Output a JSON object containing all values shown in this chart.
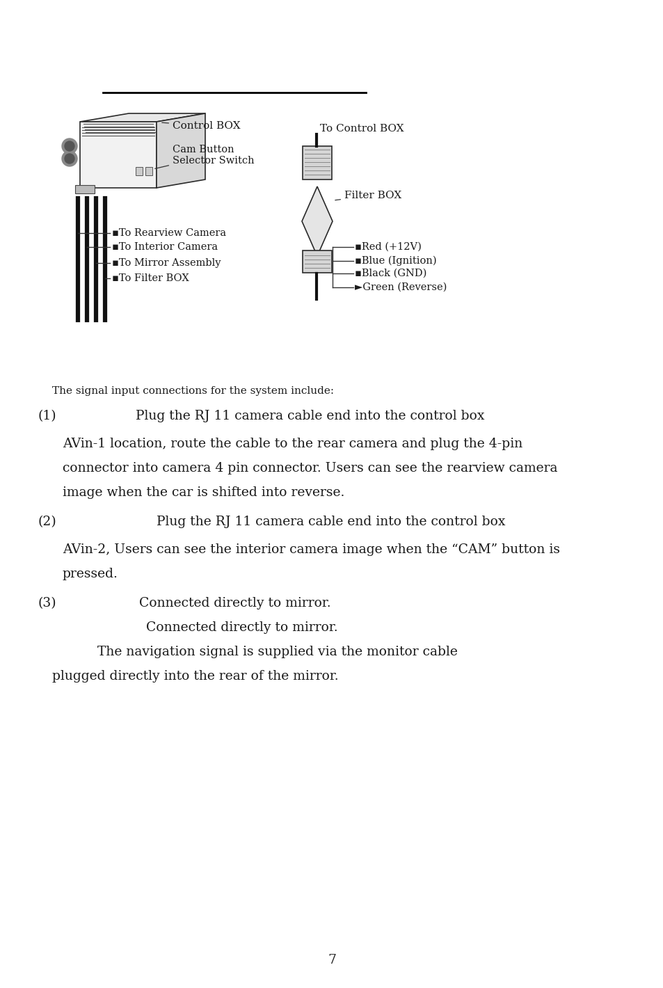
{
  "bg_color": "#ffffff",
  "text_color": "#1a1a1a",
  "line_color": "#000000",
  "page_number": "7",
  "intro_text": "The signal input connections for the system include:",
  "item1_num": "(1)",
  "item1_line1": "Plug the RJ 11 camera cable end into the control box",
  "item1_line2": "AVin-1 location, route the cable to the rear camera and plug the 4-pin",
  "item1_line3": "connector into camera 4 pin connector. Users can see the rearview camera",
  "item1_line4": "image when the car is shifted into reverse.",
  "item2_num": "(2)",
  "item2_line1": "Plug the RJ 11 camera cable end into the control box",
  "item2_line2": "AVin-2, Users can see the interior camera image when the “CAM” button is",
  "item2_line3": "pressed.",
  "item3_num": "(3)",
  "item3_line1": "Connected directly to mirror.",
  "item3_line2": "Connected directly to mirror.",
  "item3_line3": "The navigation signal is supplied via the monitor cable",
  "item3_line4": "plugged directly into the rear of the mirror.",
  "label_control_box": "Control BOX",
  "label_to_control_box": "To Control BOX",
  "label_cam_button": "Cam Button\nSelector Switch",
  "label_filter_box": "Filter BOX",
  "label_to_rearview": "▪To Rearview Camera",
  "label_to_interior": "▪To Interior Camera",
  "label_to_mirror": "▪To Mirror Assembly",
  "label_to_filter": "▪To Filter BOX",
  "label_red": "▪Red (+12V)",
  "label_blue": "▪Blue (Ignition)",
  "label_black": "▪Black (GND)",
  "label_green": "►Green (Reverse)",
  "font_size_body": 13.5,
  "font_size_label": 11.0,
  "font_size_diag": 10.5,
  "font_family": "DejaVu Serif"
}
